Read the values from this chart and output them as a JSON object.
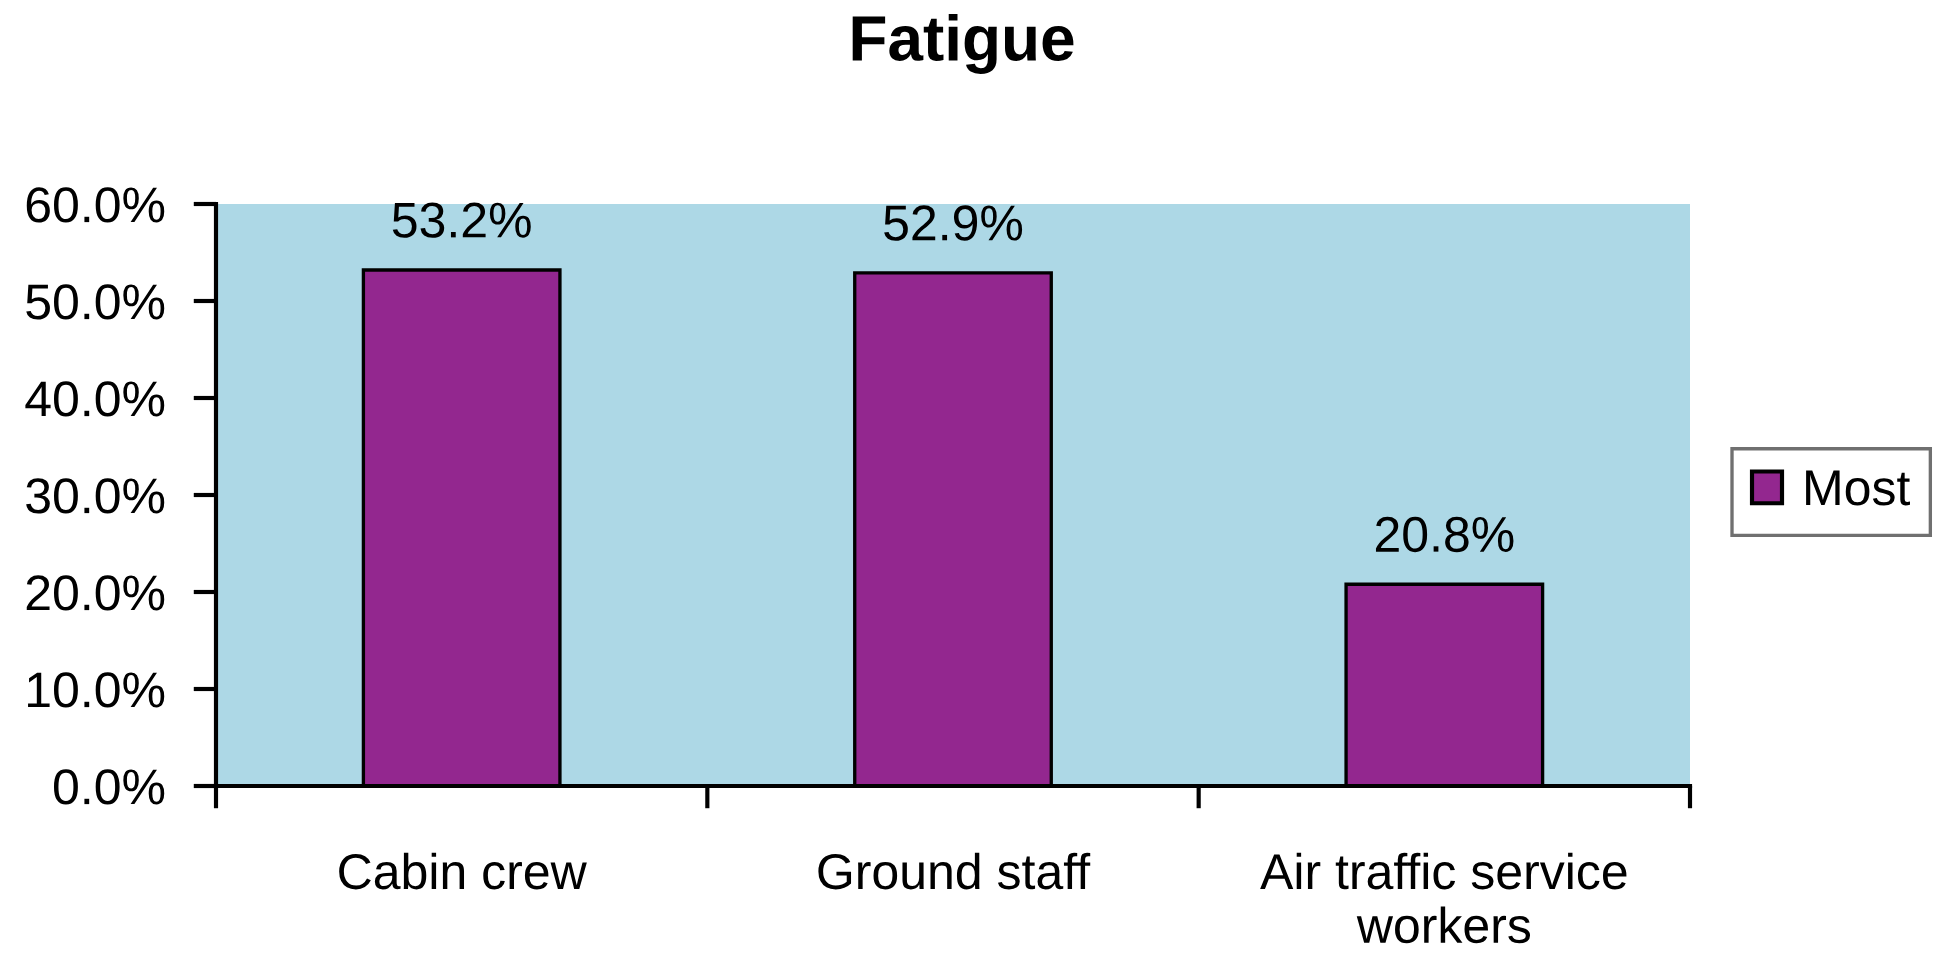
{
  "chart_data": {
    "type": "bar",
    "title": "Fatigue",
    "categories": [
      "Cabin crew",
      "Ground staff",
      "Air traffic service workers"
    ],
    "series": [
      {
        "name": "Most",
        "color": "#93278f",
        "values": [
          53.2,
          52.9,
          20.8
        ],
        "value_labels": [
          "53.2%",
          "52.9%",
          "20.8%"
        ]
      }
    ],
    "ylim": [
      0,
      60
    ],
    "yticks": [
      {
        "value": 0,
        "label": "0.0%"
      },
      {
        "value": 10,
        "label": "10.0%"
      },
      {
        "value": 20,
        "label": "20.0%"
      },
      {
        "value": 30,
        "label": "30.0%"
      },
      {
        "value": 40,
        "label": "40.0%"
      },
      {
        "value": 50,
        "label": "50.0%"
      },
      {
        "value": 60,
        "label": "60.0%"
      }
    ],
    "legend": "right"
  }
}
